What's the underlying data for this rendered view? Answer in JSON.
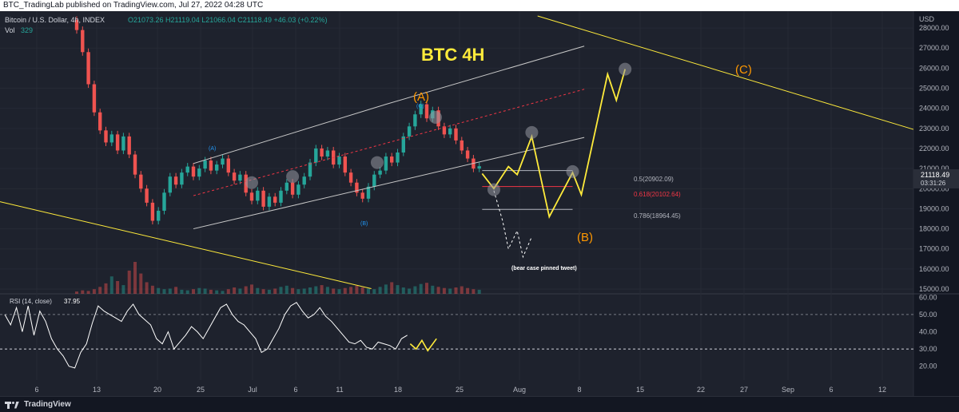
{
  "header": {
    "publish_line": "BTC_TradingLab published on TradingView.com, Jul 27, 2022 04:28 UTC",
    "symbol_line": "Bitcoin / U.S. Dollar, 4h, INDEX",
    "ohlc": "O21073.26 H21119.04 L21066.04 C21118.49 +46.03 (+0.22%)",
    "volume_label": "Vol",
    "volume_value": "329",
    "currency": "USD"
  },
  "annotations": {
    "title": "BTC 4H",
    "wave_A": "(A)",
    "wave_B": "(B)",
    "wave_C": "(C)",
    "minor_A": "(A)",
    "minor_B": "(B)",
    "minor_C": "(C)",
    "fib_05": "0.5(20902.09)",
    "fib_0618": "0.618(20102.64)",
    "fib_0786": "0.786(18964.45)",
    "bear_case": "(bear case pinned tweet)"
  },
  "price_tag": {
    "price": "21118.49",
    "countdown": "03:31:26"
  },
  "rsi_panel": {
    "label": "RSI (14, close)",
    "value": "37.95"
  },
  "footer": {
    "brand": "TradingView"
  },
  "colors": {
    "background": "#1e222d",
    "candle_up": "#26a69a",
    "candle_down": "#ef5350",
    "channel": "#c8c8c8",
    "projection": "#ffeb3b",
    "wave_label": "#ff9800",
    "fib_mid": "#f23645",
    "minor_label": "#2196f3",
    "rsi_line": "#ffffff"
  },
  "chart_data": {
    "type": "candlestick",
    "y_axis": {
      "ticks": [
        "28000.00",
        "27000.00",
        "26000.00",
        "25000.00",
        "24000.00",
        "23000.00",
        "22000.00",
        "21000.00",
        "20000.00",
        "19000.00",
        "18000.00",
        "17000.00",
        "16000.00",
        "15000.00"
      ],
      "range": [
        15000,
        28600
      ]
    },
    "x_axis": {
      "ticks": [
        "6",
        "13",
        "20",
        "25",
        "Jul",
        "6",
        "11",
        "18",
        "25",
        "Aug",
        "8",
        "15",
        "22",
        "27",
        "Sep",
        "6",
        "12"
      ]
    },
    "rsi_axis": {
      "ticks": [
        "60.00",
        "50.00",
        "40.00",
        "30.00",
        "20.00"
      ],
      "range": [
        12,
        62
      ]
    },
    "price_path": [
      [
        28400,
        27900
      ],
      [
        27900,
        26800
      ],
      [
        26800,
        25200
      ],
      [
        25200,
        23800
      ],
      [
        23800,
        22900
      ],
      [
        22900,
        22300
      ],
      [
        22300,
        22700
      ],
      [
        22700,
        21900
      ],
      [
        21900,
        22600
      ],
      [
        22600,
        21700
      ],
      [
        21700,
        20700
      ],
      [
        20700,
        20000
      ],
      [
        20000,
        19300
      ],
      [
        19300,
        18400
      ],
      [
        18400,
        18900
      ],
      [
        18900,
        19800
      ],
      [
        19800,
        20600
      ],
      [
        20600,
        20200
      ],
      [
        20200,
        20800
      ],
      [
        20800,
        21100
      ],
      [
        21100,
        20600
      ],
      [
        20600,
        21000
      ],
      [
        21000,
        21400
      ],
      [
        21400,
        20900
      ],
      [
        20900,
        21200
      ],
      [
        21200,
        21500
      ],
      [
        21500,
        20800
      ],
      [
        20800,
        20400
      ],
      [
        20400,
        20700
      ],
      [
        20700,
        19800
      ],
      [
        19800,
        19400
      ],
      [
        19400,
        19900
      ],
      [
        19900,
        19100
      ],
      [
        19100,
        19600
      ],
      [
        19600,
        19300
      ],
      [
        19300,
        19900
      ],
      [
        19900,
        20300
      ],
      [
        20300,
        19700
      ],
      [
        19700,
        20200
      ],
      [
        20200,
        20600
      ],
      [
        20600,
        21300
      ],
      [
        21300,
        22000
      ],
      [
        22000,
        21600
      ],
      [
        21600,
        21900
      ],
      [
        21900,
        21200
      ],
      [
        21200,
        21600
      ],
      [
        21600,
        20800
      ],
      [
        20800,
        20300
      ],
      [
        20300,
        19800
      ],
      [
        19800,
        19500
      ],
      [
        19500,
        20100
      ],
      [
        20100,
        20700
      ],
      [
        20700,
        20900
      ],
      [
        20900,
        21600
      ],
      [
        21600,
        21300
      ],
      [
        21300,
        21800
      ],
      [
        21800,
        22600
      ],
      [
        22600,
        23100
      ],
      [
        23100,
        23700
      ],
      [
        23700,
        24200
      ],
      [
        24200,
        23500
      ],
      [
        23500,
        23900
      ],
      [
        23900,
        23100
      ],
      [
        23100,
        22700
      ],
      [
        22700,
        23000
      ],
      [
        23000,
        22400
      ],
      [
        22400,
        21900
      ],
      [
        21900,
        21500
      ],
      [
        21500,
        21000
      ],
      [
        21000,
        21118
      ]
    ],
    "price_range": [
      15000,
      28600
    ],
    "volume_bars": [
      4,
      6,
      5,
      8,
      12,
      18,
      30,
      22,
      15,
      40,
      55,
      35,
      20,
      14,
      10,
      8,
      9,
      12,
      7,
      6,
      8,
      10,
      9,
      7,
      6,
      5,
      8,
      11,
      9,
      13,
      16,
      10,
      8,
      7,
      9,
      12,
      14,
      10,
      8,
      9,
      11,
      13,
      15,
      12,
      9,
      8,
      10,
      12,
      14,
      11,
      9,
      8,
      12,
      16,
      20,
      15,
      11,
      9,
      13,
      17,
      19,
      14,
      12,
      10,
      9,
      11,
      13,
      10,
      8,
      7
    ],
    "rsi_values": [
      50,
      44,
      54,
      40,
      55,
      38,
      52,
      46,
      36,
      30,
      26,
      20,
      19,
      28,
      33,
      45,
      55,
      52,
      50,
      48,
      46,
      52,
      56,
      50,
      47,
      44,
      36,
      33,
      40,
      30,
      34,
      38,
      43,
      40,
      36,
      42,
      48,
      54,
      56,
      50,
      46,
      44,
      40,
      36,
      28,
      30,
      36,
      42,
      50,
      55,
      57,
      52,
      48,
      50,
      54,
      49,
      46,
      42,
      38,
      34,
      33,
      35,
      31,
      30,
      34,
      33,
      32,
      30,
      36,
      38
    ],
    "channel_upper": [
      [
        20,
        21250
      ],
      [
        53,
        24200
      ],
      [
        87,
        27100
      ]
    ],
    "channel_lower": [
      [
        20,
        18000
      ],
      [
        87,
        22550
      ]
    ],
    "channel_mid_dashed": [
      [
        20,
        19650
      ],
      [
        87,
        24950
      ]
    ],
    "fib_levels": [
      {
        "ratio": 0.5,
        "price": 20902.09
      },
      {
        "ratio": 0.618,
        "price": 20102.64
      },
      {
        "ratio": 0.786,
        "price": 18964.45
      }
    ],
    "projection_path": [
      [
        69.5,
        20750
      ],
      [
        71.5,
        20000
      ],
      [
        74,
        21100
      ],
      [
        75.5,
        20700
      ],
      [
        78,
        22600
      ],
      [
        81,
        18600
      ],
      [
        85,
        20800
      ],
      [
        86.5,
        19700
      ],
      [
        91,
        25700
      ],
      [
        92.5,
        24400
      ],
      [
        94,
        25950
      ]
    ],
    "bear_case_path": [
      [
        71.5,
        19900
      ],
      [
        73,
        18400
      ],
      [
        74,
        17000
      ],
      [
        75.5,
        17900
      ],
      [
        76.5,
        16600
      ],
      [
        78,
        17600
      ]
    ],
    "rsi_projection": [
      [
        69.5,
        33
      ],
      [
        70.5,
        30
      ],
      [
        71.5,
        35
      ],
      [
        72.5,
        29
      ],
      [
        74,
        36
      ]
    ]
  }
}
